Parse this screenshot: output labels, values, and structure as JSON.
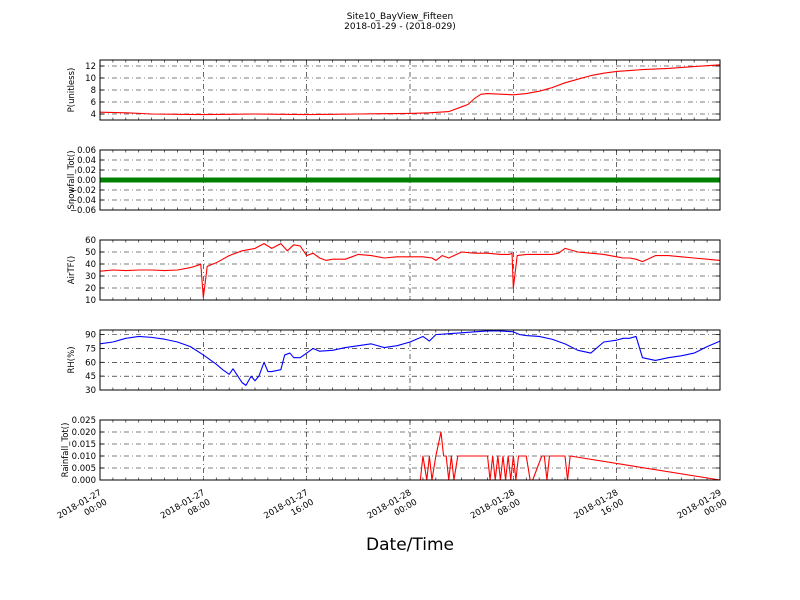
{
  "figure": {
    "title": "Site10_BayView_Fifteen",
    "subtitle": "2018-01-29 - (2018-029)",
    "xlabel": "Date/Time",
    "x_range": [
      "2018-01-27 00:00",
      "2018-01-29 00:00"
    ],
    "x_ticks": [
      {
        "line1": "2018-01-27",
        "line2": "00:00",
        "hours": 0
      },
      {
        "line1": "2018-01-27",
        "line2": "08:00",
        "hours": 8
      },
      {
        "line1": "2018-01-27",
        "line2": "16:00",
        "hours": 16
      },
      {
        "line1": "2018-01-28",
        "line2": "00:00",
        "hours": 24
      },
      {
        "line1": "2018-01-28",
        "line2": "08:00",
        "hours": 32
      },
      {
        "line1": "2018-01-28",
        "line2": "16:00",
        "hours": 40
      },
      {
        "line1": "2018-01-29",
        "line2": "00:00",
        "hours": 48
      }
    ],
    "grid": true
  },
  "chart_data": [
    {
      "type": "line",
      "ylabel": "P(unitless)",
      "color": "#ff0000",
      "ylim": [
        3,
        13
      ],
      "yticks": [
        4,
        6,
        8,
        10,
        12
      ],
      "ytick_labels": [
        "4",
        "6",
        "8",
        "10",
        "12"
      ],
      "x_hours": [
        0,
        2,
        4,
        6,
        8,
        10,
        12,
        14,
        16,
        18,
        20,
        22,
        24,
        25.5,
        27,
        28,
        28.5,
        29,
        29.5,
        30,
        31,
        32,
        33,
        34,
        35,
        36,
        37,
        38,
        39,
        40,
        42,
        44,
        46,
        48
      ],
      "values": [
        4.3,
        4.2,
        4.0,
        3.95,
        3.9,
        3.95,
        4.0,
        3.95,
        3.9,
        3.95,
        4.0,
        4.05,
        4.1,
        4.2,
        4.4,
        5.2,
        5.6,
        6.6,
        7.3,
        7.4,
        7.3,
        7.2,
        7.4,
        7.8,
        8.4,
        9.2,
        9.8,
        10.4,
        10.8,
        11.1,
        11.4,
        11.6,
        11.9,
        12.2
      ]
    },
    {
      "type": "line",
      "ylabel": "Snowfall_Tot()",
      "color": "#008000",
      "ylim": [
        -0.06,
        0.06
      ],
      "yticks": [
        -0.06,
        -0.04,
        -0.02,
        0.0,
        0.02,
        0.04,
        0.06
      ],
      "ytick_labels": [
        "−0.06",
        "−0.04",
        "−0.02",
        "0.00",
        "0.02",
        "0.04",
        "0.06"
      ],
      "x_hours": [
        0,
        48
      ],
      "values": [
        0,
        0
      ]
    },
    {
      "type": "line",
      "ylabel": "AirTF()",
      "color": "#ff0000",
      "ylim": [
        10,
        60
      ],
      "yticks": [
        10,
        20,
        30,
        40,
        50,
        60
      ],
      "ytick_labels": [
        "10",
        "20",
        "30",
        "40",
        "50",
        "60"
      ],
      "x_hours": [
        0,
        1,
        2,
        3,
        4,
        5,
        6,
        7,
        7.6,
        7.8,
        8.0,
        8.3,
        9,
        10,
        11,
        12,
        12.7,
        13.3,
        14,
        14.5,
        15,
        15.5,
        16,
        16.5,
        17,
        17.5,
        18,
        19,
        19.5,
        20,
        21,
        22,
        23,
        24,
        25,
        25.7,
        26,
        26.5,
        27,
        28,
        29,
        30,
        31,
        31.5,
        31.7,
        31.9,
        32,
        32.3,
        33,
        34,
        35,
        35.5,
        36,
        37,
        38,
        39,
        40,
        40.5,
        41,
        41.5,
        42,
        43,
        44,
        45,
        46,
        47,
        48
      ],
      "values": [
        34,
        35,
        34.5,
        35,
        35,
        34.5,
        35,
        37,
        39,
        40,
        12,
        38,
        41,
        47,
        51,
        53,
        57,
        53,
        57,
        51,
        56,
        55,
        47,
        49,
        45,
        43,
        44,
        44,
        46,
        48,
        47,
        45,
        46,
        46,
        46,
        45,
        43,
        47,
        45,
        50,
        49,
        49,
        48,
        48,
        48,
        49,
        20,
        47,
        48,
        48,
        48,
        49,
        53,
        50,
        49,
        48,
        46,
        45,
        45,
        44,
        42,
        47,
        47,
        46,
        45,
        44,
        43
      ]
    },
    {
      "type": "line",
      "ylabel": "RH(%)",
      "color": "#0000ff",
      "ylim": [
        30,
        95
      ],
      "yticks": [
        30,
        45,
        60,
        75,
        90
      ],
      "ytick_labels": [
        "30",
        "45",
        "60",
        "75",
        "90"
      ],
      "x_hours": [
        0,
        1,
        2,
        3,
        4,
        5,
        6,
        7,
        8,
        9,
        9.5,
        10,
        10.3,
        11,
        11.3,
        11.7,
        12,
        12.3,
        12.7,
        13,
        13.3,
        14,
        14.3,
        14.7,
        15,
        15.5,
        16,
        16.5,
        17,
        18,
        19,
        20,
        21,
        22,
        23,
        24,
        25,
        25.5,
        26,
        27,
        28,
        29,
        30,
        31,
        32,
        32.5,
        33,
        34,
        35,
        36,
        37,
        38,
        39,
        40,
        40.5,
        41,
        41.5,
        42,
        43,
        44,
        45,
        46,
        47,
        48
      ],
      "values": [
        80,
        82,
        86,
        88,
        87,
        85,
        82,
        77,
        68,
        58,
        52,
        47,
        53,
        38,
        35,
        45,
        40,
        45,
        60,
        50,
        50,
        52,
        68,
        70,
        65,
        65,
        70,
        75,
        72,
        73,
        76,
        78,
        80,
        76,
        78,
        82,
        88,
        83,
        90,
        91,
        92,
        93,
        94,
        94,
        93,
        90,
        89,
        88,
        85,
        80,
        73,
        70,
        82,
        84,
        86,
        86,
        88,
        65,
        62,
        65,
        67,
        70,
        77,
        83
      ]
    },
    {
      "type": "line",
      "ylabel": "Rainfall_Tot()",
      "color": "#ff0000",
      "ylim": [
        0,
        0.025
      ],
      "yticks": [
        0,
        0.005,
        0.01,
        0.015,
        0.02,
        0.025
      ],
      "ytick_labels": [
        "0.000",
        "0.005",
        "0.010",
        "0.015",
        "0.020",
        "0.025"
      ],
      "x_hours": [
        0,
        24.8,
        25.0,
        25.3,
        25.5,
        25.7,
        26.0,
        26.2,
        26.4,
        26.6,
        26.8,
        27.0,
        27.2,
        27.4,
        27.7,
        28.0,
        28.2,
        29.0,
        30.0,
        30.2,
        30.4,
        30.6,
        30.8,
        31.0,
        31.2,
        31.4,
        31.6,
        31.8,
        32.0,
        32.2,
        32.4,
        32.6,
        33.0,
        33.3,
        33.5,
        34.2,
        34.4,
        34.6,
        34.8,
        35.0,
        35.2,
        36.0,
        36.2,
        36.4,
        48
      ],
      "values": [
        0,
        0,
        0.01,
        0,
        0.01,
        0,
        0.01,
        0.015,
        0.02,
        0.01,
        0.01,
        0,
        0.01,
        0,
        0.01,
        0.01,
        0.01,
        0.01,
        0.01,
        0,
        0.01,
        0,
        0.01,
        0,
        0.01,
        0,
        0.01,
        0,
        0.01,
        0,
        0.01,
        0.01,
        0.01,
        0,
        0,
        0.01,
        0.01,
        0,
        0.01,
        0.01,
        0.01,
        0.01,
        0,
        0.01,
        0
      ]
    }
  ]
}
